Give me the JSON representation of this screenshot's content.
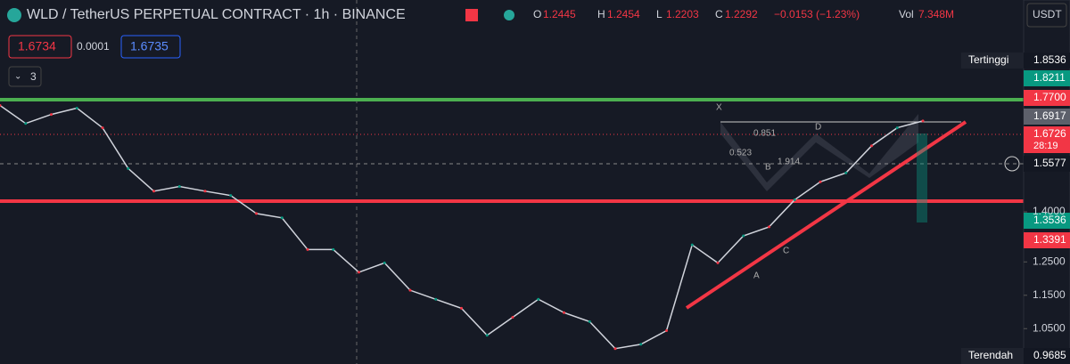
{
  "header": {
    "symbol": "WLD / TetherUS PERPETUAL CONTRACT · 1h · BINANCE",
    "ohlc": [
      {
        "label": "O",
        "value": "1.2445"
      },
      {
        "label": "H",
        "value": "1.2454"
      },
      {
        "label": "L",
        "value": "1.2203"
      },
      {
        "label": "C",
        "value": "1.2292"
      }
    ],
    "change": "−0.0153 (−1.23%)",
    "vol_label": "Vol",
    "vol": "7.348M",
    "currency": "USDT"
  },
  "order": {
    "sell": "1.6734",
    "spread": "0.0001",
    "buy": "1.6735"
  },
  "indicators": "3",
  "pattern_labels": [
    "X",
    "D",
    "A",
    "B",
    "C",
    "0.851",
    "0.523",
    "1.914"
  ],
  "chart": {
    "type": "line",
    "color": "#d1d4dc",
    "values": [
      1.719,
      1.665,
      1.692,
      1.711,
      1.652,
      1.53,
      1.462,
      1.476,
      1.462,
      1.449,
      1.395,
      1.382,
      1.287,
      1.287,
      1.219,
      1.247,
      1.165,
      1.138,
      1.111,
      1.03,
      1.084,
      1.138,
      1.098,
      1.071,
      0.99,
      1.003,
      1.044,
      1.301,
      1.247,
      1.328,
      1.355,
      1.436,
      1.49,
      1.517,
      1.598,
      1.652,
      1.6726
    ],
    "ylim": [
      0.944,
      2.035
    ],
    "yticks": [
      {
        "value": 1.4,
        "label": "1.4000"
      },
      {
        "value": 1.25,
        "label": "1.2500"
      },
      {
        "value": 1.15,
        "label": "1.1500"
      },
      {
        "value": 1.05,
        "label": "1.0500"
      }
    ]
  },
  "price_tags": [
    {
      "name": "Tertinggi",
      "value": "1.8536"
    },
    {
      "value": "1.8211"
    },
    {
      "value": "1.7700"
    },
    {
      "value": "1.6917"
    },
    {
      "value": "1.6726",
      "timer": "28:19"
    },
    {
      "value": "1.5577"
    },
    {
      "value": "1.3536"
    },
    {
      "value": "1.3391"
    },
    {
      "name": "Terendah",
      "value": "0.9685"
    }
  ]
}
